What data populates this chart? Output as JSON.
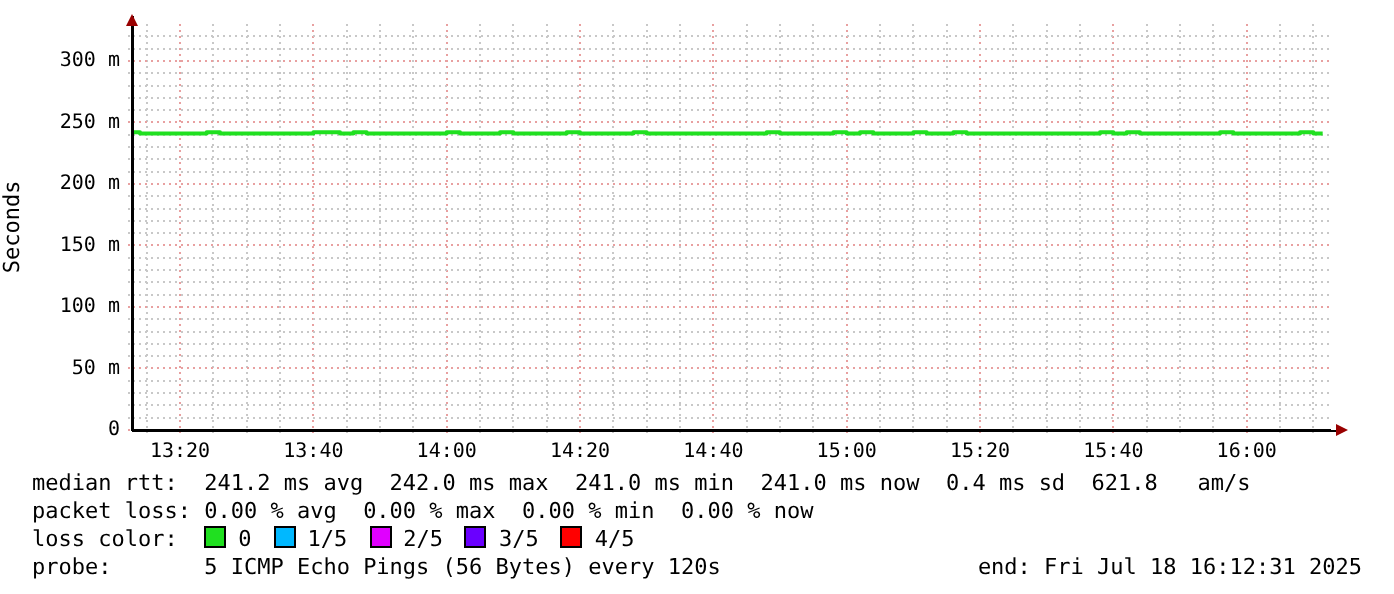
{
  "chart_data": {
    "type": "step",
    "ylabel": "Seconds",
    "legend_title": "loss color:",
    "legend": "bottom",
    "grid": true,
    "marker": "none",
    "line_style": "solid",
    "x": [
      13.2133,
      13.2333,
      13.4,
      13.4333,
      13.6667,
      13.7333,
      13.7667,
      13.8,
      14,
      14.0333,
      14.1333,
      14.1667,
      14.3,
      14.3333,
      14.4667,
      14.5,
      14.8,
      14.8333,
      14.9667,
      15,
      15.0333,
      15.0667,
      15.1667,
      15.2,
      15.2667,
      15.3,
      15.6333,
      15.6667,
      15.7,
      15.7333,
      15.9333,
      15.9667,
      16.1333,
      16.1667,
      16.19
    ],
    "series": [
      {
        "name": "0",
        "color": "#20e020",
        "values": [
          242,
          241,
          242,
          241,
          242,
          241,
          242,
          241,
          242,
          241,
          242,
          241,
          242,
          241,
          242,
          241,
          242,
          241,
          242,
          241,
          242,
          241,
          242,
          241,
          242,
          241,
          242,
          241,
          242,
          241,
          242,
          241,
          242,
          241,
          241
        ]
      },
      {
        "name": "1/5",
        "color": "#00b8ff",
        "values": [
          null,
          null,
          null,
          null,
          null,
          null,
          null,
          null,
          null,
          null,
          null,
          null,
          null,
          null,
          null,
          null,
          null,
          null,
          null,
          null,
          null,
          null,
          null,
          null,
          null,
          null,
          null,
          null,
          null,
          null,
          null,
          null,
          null,
          null,
          null
        ]
      },
      {
        "name": "2/5",
        "color": "#e000ff",
        "values": [
          null,
          null,
          null,
          null,
          null,
          null,
          null,
          null,
          null,
          null,
          null,
          null,
          null,
          null,
          null,
          null,
          null,
          null,
          null,
          null,
          null,
          null,
          null,
          null,
          null,
          null,
          null,
          null,
          null,
          null,
          null,
          null,
          null,
          null,
          null
        ]
      },
      {
        "name": "3/5",
        "color": "#6a00ff",
        "values": [
          null,
          null,
          null,
          null,
          null,
          null,
          null,
          null,
          null,
          null,
          null,
          null,
          null,
          null,
          null,
          null,
          null,
          null,
          null,
          null,
          null,
          null,
          null,
          null,
          null,
          null,
          null,
          null,
          null,
          null,
          null,
          null,
          null,
          null,
          null
        ]
      },
      {
        "name": "4/5",
        "color": "#ff0000",
        "values": [
          null,
          null,
          null,
          null,
          null,
          null,
          null,
          null,
          null,
          null,
          null,
          null,
          null,
          null,
          null,
          null,
          null,
          null,
          null,
          null,
          null,
          null,
          null,
          null,
          null,
          null,
          null,
          null,
          null,
          null,
          null,
          null,
          null,
          null,
          null
        ]
      }
    ],
    "xlim": [
      13.2133,
      16.2083
    ],
    "xticks": [
      {
        "value": 13.25,
        "label": null
      },
      {
        "value": 13.3333,
        "label": "13:20"
      },
      {
        "value": 13.4167,
        "label": null
      },
      {
        "value": 13.5,
        "label": null
      },
      {
        "value": 13.5833,
        "label": null
      },
      {
        "value": 13.6667,
        "label": "13:40"
      },
      {
        "value": 13.75,
        "label": null
      },
      {
        "value": 13.8333,
        "label": null
      },
      {
        "value": 13.9167,
        "label": null
      },
      {
        "value": 14,
        "label": "14:00"
      },
      {
        "value": 14.0833,
        "label": null
      },
      {
        "value": 14.1667,
        "label": null
      },
      {
        "value": 14.25,
        "label": null
      },
      {
        "value": 14.3333,
        "label": "14:20"
      },
      {
        "value": 14.4167,
        "label": null
      },
      {
        "value": 14.5,
        "label": null
      },
      {
        "value": 14.5833,
        "label": null
      },
      {
        "value": 14.6667,
        "label": "14:40"
      },
      {
        "value": 14.75,
        "label": null
      },
      {
        "value": 14.8333,
        "label": null
      },
      {
        "value": 14.9167,
        "label": null
      },
      {
        "value": 15,
        "label": "15:00"
      },
      {
        "value": 15.0833,
        "label": null
      },
      {
        "value": 15.1667,
        "label": null
      },
      {
        "value": 15.25,
        "label": null
      },
      {
        "value": 15.3333,
        "label": "15:20"
      },
      {
        "value": 15.4167,
        "label": null
      },
      {
        "value": 15.5,
        "label": null
      },
      {
        "value": 15.5833,
        "label": null
      },
      {
        "value": 15.6667,
        "label": "15:40"
      },
      {
        "value": 15.75,
        "label": null
      },
      {
        "value": 15.8333,
        "label": null
      },
      {
        "value": 15.9167,
        "label": null
      },
      {
        "value": 16,
        "label": "16:00"
      },
      {
        "value": 16.0833,
        "label": null
      },
      {
        "value": 16.1667,
        "label": null
      }
    ],
    "ylim": [
      0,
      330
    ],
    "yticks": [
      0,
      {
        "value": 10,
        "label": null
      },
      {
        "value": 20,
        "label": null
      },
      {
        "value": 30,
        "label": null
      },
      {
        "value": 40,
        "label": null
      },
      {
        "value": 50,
        "label": "50 m"
      },
      {
        "value": 60,
        "label": null
      },
      {
        "value": 70,
        "label": null
      },
      {
        "value": 80,
        "label": null
      },
      {
        "value": 90,
        "label": null
      },
      {
        "value": 100,
        "label": "100 m"
      },
      {
        "value": 110,
        "label": null
      },
      {
        "value": 120,
        "label": null
      },
      {
        "value": 130,
        "label": null
      },
      {
        "value": 140,
        "label": null
      },
      {
        "value": 150,
        "label": "150 m"
      },
      {
        "value": 160,
        "label": null
      },
      {
        "value": 170,
        "label": null
      },
      {
        "value": 180,
        "label": null
      },
      {
        "value": 190,
        "label": null
      },
      {
        "value": 200,
        "label": "200 m"
      },
      {
        "value": 210,
        "label": null
      },
      {
        "value": 220,
        "label": null
      },
      {
        "value": 230,
        "label": null
      },
      {
        "value": 240,
        "label": null
      },
      {
        "value": 250,
        "label": "250 m"
      },
      {
        "value": 260,
        "label": null
      },
      {
        "value": 270,
        "label": null
      },
      {
        "value": 280,
        "label": null
      },
      {
        "value": 290,
        "label": null
      },
      {
        "value": 300,
        "label": "300 m"
      },
      {
        "value": 310,
        "label": null
      },
      {
        "value": 320,
        "label": null
      }
    ],
    "annotations": [
      "median rtt:  241.2 ms avg  242.0 ms max  241.0 ms min  241.0 ms now  0.4 ms sd  621.8   am/s",
      "packet loss: 0.00 % avg  0.00 % max  0.00 % min  0.00 % now",
      "probe:       5 ICMP Echo Pings (56 Bytes) every 120s",
      "end: Fri Jul 18 16:12:31 2025"
    ]
  }
}
